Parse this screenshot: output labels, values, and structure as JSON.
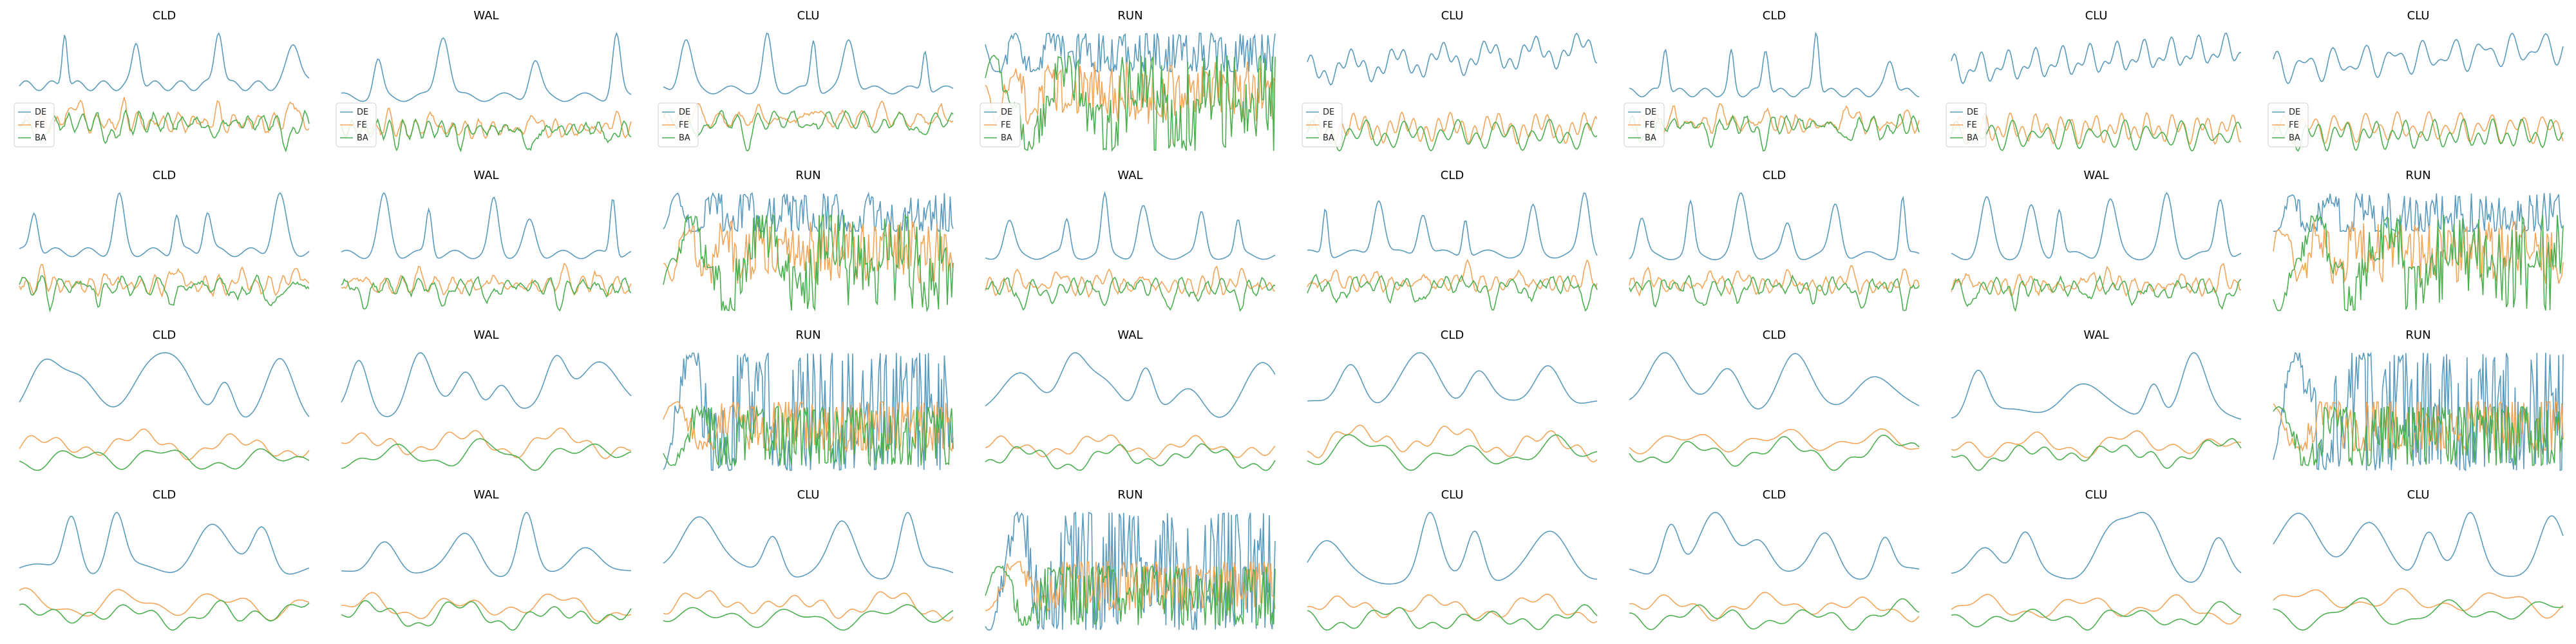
{
  "figure": {
    "colors": {
      "DE": "#5b9bbd",
      "FE": "#f2a65a",
      "BA": "#4caf50"
    }
  },
  "chart_data": {
    "type": "line",
    "grid": false,
    "axes_visible": false,
    "series_names": [
      "DE",
      "FE",
      "BA"
    ],
    "legend": {
      "entries": [
        "DE",
        "FE",
        "BA"
      ],
      "placement": "lower-left",
      "shown_in": "row 1 panels"
    },
    "panels": [
      {
        "title": "CLD",
        "pattern": "spiky",
        "legend": true
      },
      {
        "title": "WAL",
        "pattern": "spiky",
        "legend": true
      },
      {
        "title": "CLU",
        "pattern": "spiky",
        "legend": true
      },
      {
        "title": "RUN",
        "pattern": "run",
        "legend": true
      },
      {
        "title": "CLU",
        "pattern": "calm",
        "legend": true
      },
      {
        "title": "CLD",
        "pattern": "spiky",
        "legend": true
      },
      {
        "title": "CLU",
        "pattern": "calm",
        "legend": true
      },
      {
        "title": "CLU",
        "pattern": "calm",
        "legend": true
      },
      {
        "title": "CLD",
        "pattern": "spiky",
        "legend": false
      },
      {
        "title": "WAL",
        "pattern": "spiky",
        "legend": false
      },
      {
        "title": "RUN",
        "pattern": "run",
        "legend": false
      },
      {
        "title": "WAL",
        "pattern": "spiky",
        "legend": false
      },
      {
        "title": "CLD",
        "pattern": "spiky",
        "legend": false
      },
      {
        "title": "CLD",
        "pattern": "spiky",
        "legend": false
      },
      {
        "title": "WAL",
        "pattern": "spiky",
        "legend": false
      },
      {
        "title": "RUN",
        "pattern": "run",
        "legend": false
      },
      {
        "title": "CLD",
        "pattern": "smooth",
        "legend": false
      },
      {
        "title": "WAL",
        "pattern": "smooth",
        "legend": false
      },
      {
        "title": "RUN",
        "pattern": "run-smooth",
        "legend": false
      },
      {
        "title": "WAL",
        "pattern": "smooth",
        "legend": false
      },
      {
        "title": "CLD",
        "pattern": "smooth",
        "legend": false
      },
      {
        "title": "CLD",
        "pattern": "smooth",
        "legend": false
      },
      {
        "title": "WAL",
        "pattern": "smooth",
        "legend": false
      },
      {
        "title": "RUN",
        "pattern": "run-smooth",
        "legend": false
      },
      {
        "title": "CLD",
        "pattern": "smooth",
        "legend": false
      },
      {
        "title": "WAL",
        "pattern": "smooth",
        "legend": false
      },
      {
        "title": "CLU",
        "pattern": "smooth",
        "legend": false
      },
      {
        "title": "RUN",
        "pattern": "run-smooth",
        "legend": false
      },
      {
        "title": "CLU",
        "pattern": "smooth",
        "legend": false
      },
      {
        "title": "CLD",
        "pattern": "smooth",
        "legend": false
      },
      {
        "title": "CLU",
        "pattern": "smooth",
        "legend": false
      },
      {
        "title": "CLU",
        "pattern": "smooth",
        "legend": false
      }
    ]
  }
}
